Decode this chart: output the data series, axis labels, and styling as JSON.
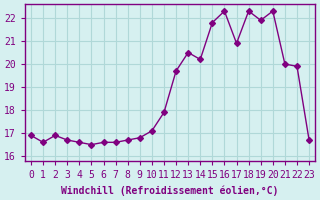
{
  "x": [
    0,
    1,
    2,
    3,
    4,
    5,
    6,
    7,
    8,
    9,
    10,
    11,
    12,
    13,
    14,
    15,
    16,
    17,
    18,
    19,
    20,
    21,
    22,
    23
  ],
  "y": [
    16.9,
    16.6,
    16.9,
    16.7,
    16.6,
    16.5,
    16.6,
    16.6,
    16.7,
    16.8,
    17.1,
    17.9,
    19.7,
    20.5,
    20.2,
    21.8,
    22.3,
    20.9,
    22.3,
    21.9,
    22.3,
    20.0,
    19.9,
    16.7
  ],
  "line_color": "#800080",
  "marker": "D",
  "marker_size": 3,
  "bg_color": "#d6f0f0",
  "grid_color": "#b0d8d8",
  "xlabel": "Windchill (Refroidissement éolien,°C)",
  "ylim": [
    15.8,
    22.6
  ],
  "yticks": [
    16,
    17,
    18,
    19,
    20,
    21,
    22
  ],
  "xticks": [
    0,
    1,
    2,
    3,
    4,
    5,
    6,
    7,
    8,
    9,
    10,
    11,
    12,
    13,
    14,
    15,
    16,
    17,
    18,
    19,
    20,
    21,
    22,
    23
  ],
  "tick_color": "#800080",
  "label_color": "#800080",
  "spine_color": "#800080",
  "font_size": 7,
  "xlabel_font_size": 7
}
